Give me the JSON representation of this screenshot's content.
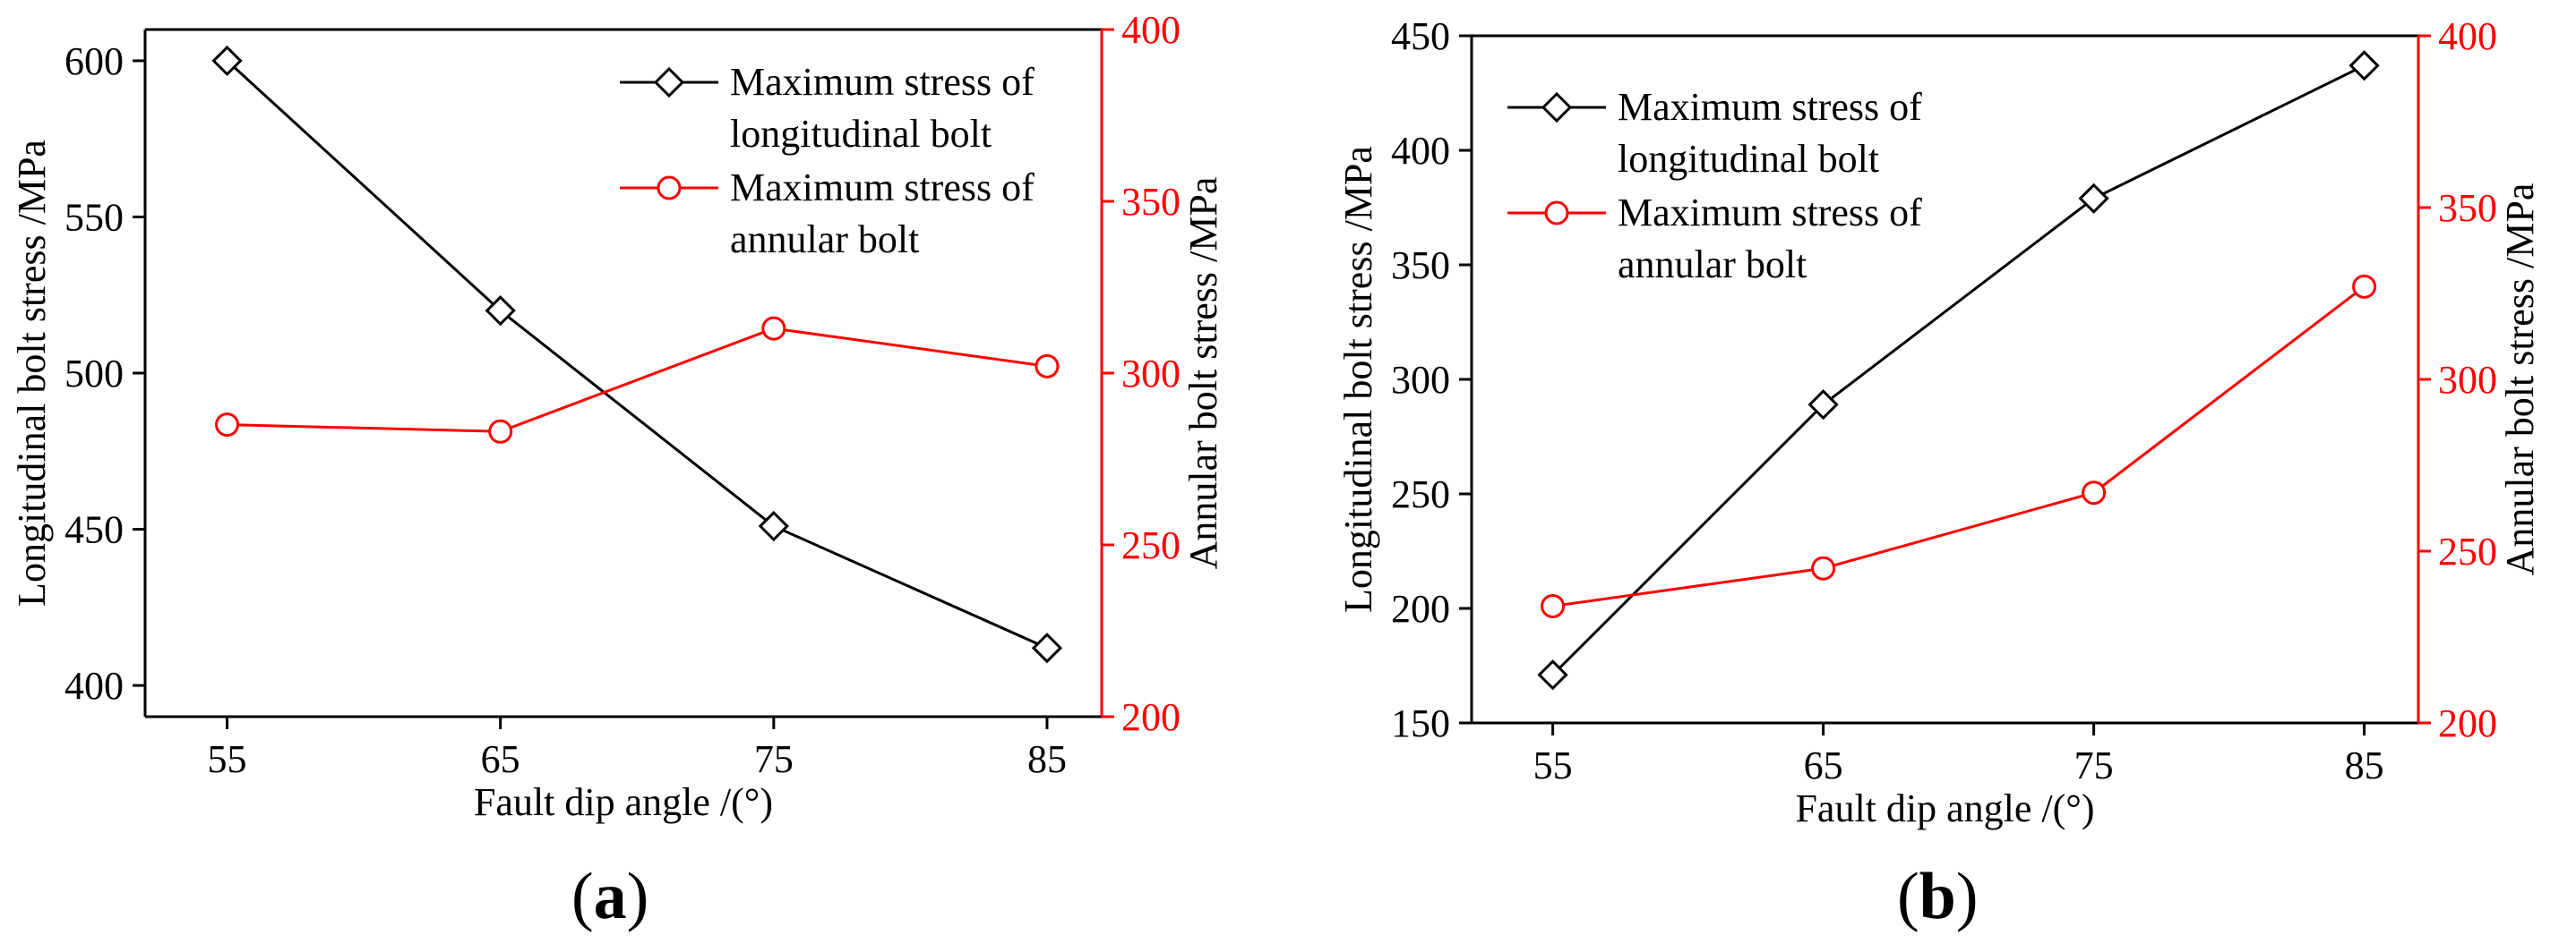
{
  "colors": {
    "black": "#000000",
    "red": "#ff0000"
  },
  "chart_data": [
    {
      "type": "line",
      "panel": "a",
      "caption_open": "(",
      "caption_letter": "a",
      "caption_close": ")",
      "xlabel": "Fault dip angle /(°)",
      "ylabel": "Longitudinal bolt stress /MPa",
      "y2label": "Annular bolt stress /MPa",
      "x": [
        55,
        65,
        75,
        85
      ],
      "xlim": [
        52,
        87
      ],
      "ylim": [
        390,
        610
      ],
      "yticks": [
        400,
        450,
        500,
        550,
        600
      ],
      "y2lim": [
        200,
        400
      ],
      "y2ticks": [
        200,
        250,
        300,
        350,
        400
      ],
      "legend_position": "top-right",
      "series": [
        {
          "name": "Maximum stress of longitudinal bolt",
          "legend_lines": [
            "Maximum stress of",
            "longitudinal bolt"
          ],
          "axis": "left",
          "marker": "diamond",
          "color": "#000000",
          "values": [
            600,
            520,
            451,
            412
          ]
        },
        {
          "name": "Maximum stress of annular bolt",
          "legend_lines": [
            "Maximum stress of",
            "annular bolt"
          ],
          "axis": "right",
          "marker": "circle",
          "color": "#ff0000",
          "values": [
            285,
            283,
            313,
            302
          ]
        }
      ]
    },
    {
      "type": "line",
      "panel": "b",
      "caption_open": "(",
      "caption_letter": "b",
      "caption_close": ")",
      "xlabel": "Fault dip angle /(°)",
      "ylabel": "Longitudinal bolt stress /MPa",
      "y2label": "Annular bolt stress /MPa",
      "x": [
        55,
        65,
        75,
        85
      ],
      "xlim": [
        52,
        87
      ],
      "ylim": [
        150,
        450
      ],
      "yticks": [
        150,
        200,
        250,
        300,
        350,
        400,
        450
      ],
      "y2lim": [
        200,
        400
      ],
      "y2ticks": [
        200,
        250,
        300,
        350,
        400
      ],
      "legend_position": "top-left",
      "series": [
        {
          "name": "Maximum stress of longitudinal bolt",
          "legend_lines": [
            "Maximum stress of",
            "longitudinal bolt"
          ],
          "axis": "left",
          "marker": "diamond",
          "color": "#000000",
          "values": [
            171,
            289,
            379,
            437
          ]
        },
        {
          "name": "Maximum stress of annular bolt",
          "legend_lines": [
            "Maximum stress of",
            "annular bolt"
          ],
          "axis": "right",
          "marker": "circle",
          "color": "#ff0000",
          "values": [
            234,
            245,
            267,
            327
          ]
        }
      ]
    }
  ]
}
